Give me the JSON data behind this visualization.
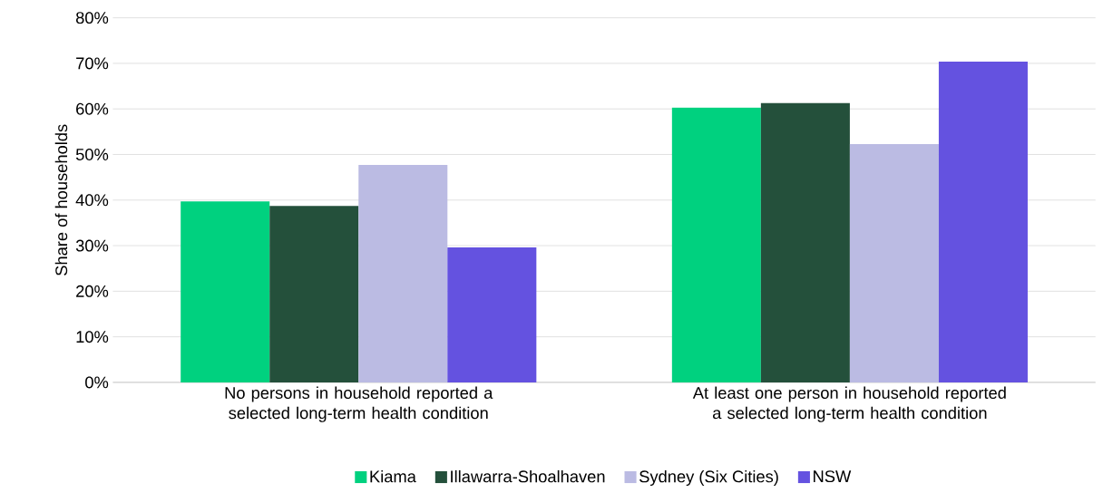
{
  "chart_data": {
    "type": "bar",
    "ylabel": "Share of households",
    "categories": [
      "No persons in household reported a selected long-term health condition",
      "At least one person in household reported a selected long-term health condition"
    ],
    "series": [
      {
        "name": "Kiama",
        "color": "#00d17f",
        "values": [
          39.7,
          60.3
        ]
      },
      {
        "name": "Illawarra-Shoalhaven",
        "color": "#24503b",
        "values": [
          38.7,
          61.3
        ]
      },
      {
        "name": "Sydney (Six Cities)",
        "color": "#bbbbe3",
        "values": [
          47.7,
          52.3
        ]
      },
      {
        "name": "NSW",
        "color": "#6452e0",
        "values": [
          29.6,
          70.4
        ]
      }
    ],
    "ylim": [
      0,
      80
    ],
    "yticks": [
      {
        "value": 0,
        "label": "0%"
      },
      {
        "value": 10,
        "label": "10%"
      },
      {
        "value": 20,
        "label": "20%"
      },
      {
        "value": 30,
        "label": "30%"
      },
      {
        "value": 40,
        "label": "40%"
      },
      {
        "value": 50,
        "label": "50%"
      },
      {
        "value": 60,
        "label": "60%"
      },
      {
        "value": 70,
        "label": "70%"
      },
      {
        "value": 80,
        "label": "80%"
      }
    ],
    "grid": "y",
    "legend": "bottom"
  }
}
